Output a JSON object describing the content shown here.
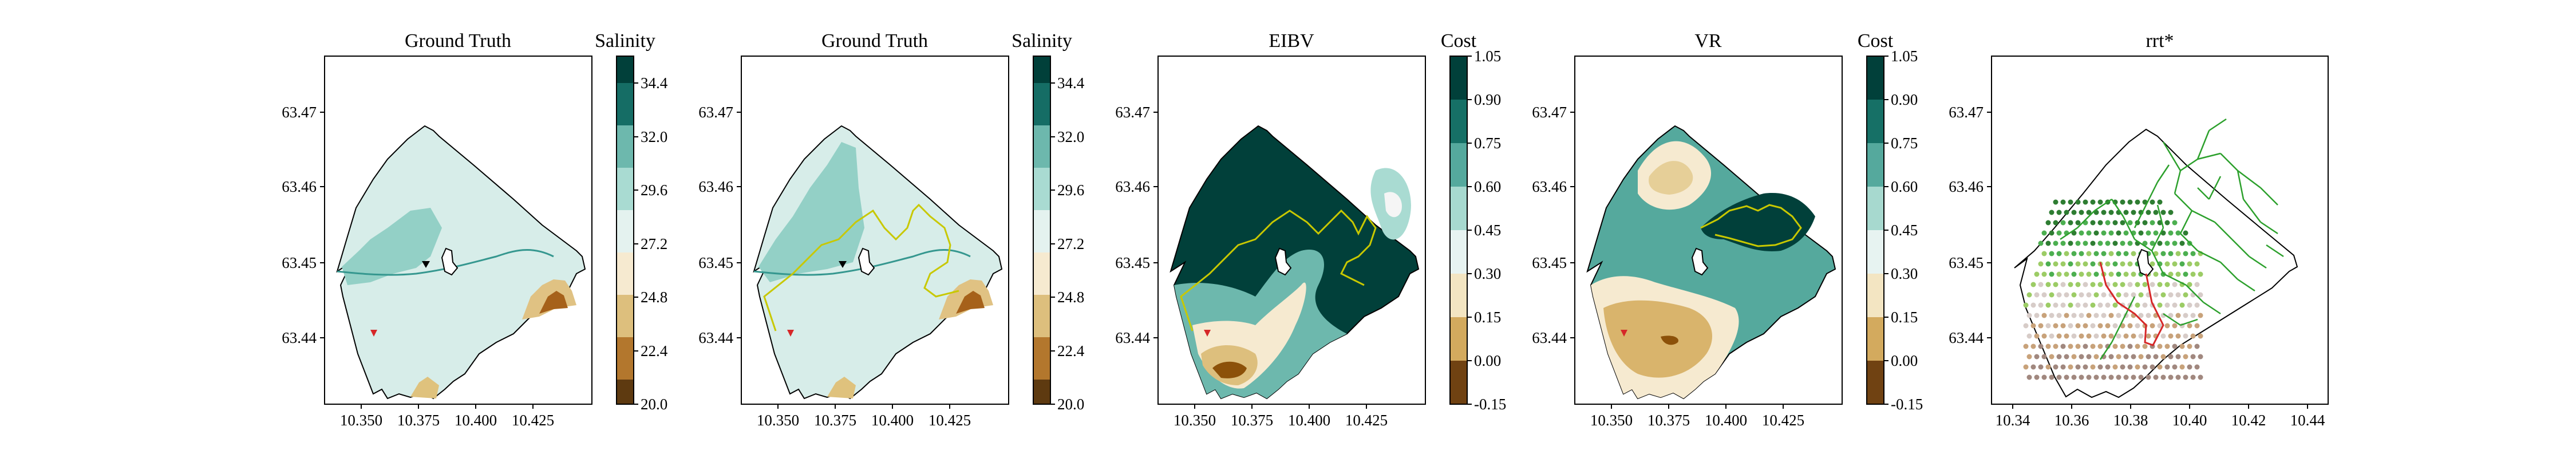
{
  "chart_data": [
    {
      "type": "contour",
      "title": "Ground Truth",
      "colorbar": {
        "label": "Salinity",
        "ticks": [
          "20.0",
          "22.4",
          "24.8",
          "27.2",
          "29.6",
          "32.0",
          "34.4"
        ],
        "range": [
          20.0,
          35.6
        ],
        "colormap": "BrBG"
      },
      "x_ticks": [
        "10.350",
        "10.375",
        "10.400",
        "10.425"
      ],
      "y_ticks": [
        "63.44",
        "63.45",
        "63.46",
        "63.47"
      ],
      "xlim": [
        10.33,
        10.45
      ],
      "ylim": [
        63.43,
        63.477
      ],
      "markers": [
        {
          "kind": "start",
          "symbol": "triangle-down",
          "color": "#d62728",
          "x": 10.356,
          "y": 63.441
        },
        {
          "kind": "current",
          "symbol": "triangle-down",
          "color": "#000000",
          "x": 10.372,
          "y": 63.45
        }
      ]
    },
    {
      "type": "contour",
      "title": "Ground Truth",
      "colorbar": {
        "label": "Salinity",
        "ticks": [
          "20.0",
          "22.4",
          "24.8",
          "27.2",
          "29.6",
          "32.0",
          "34.4"
        ],
        "range": [
          20.0,
          35.6
        ],
        "colormap": "BrBG"
      },
      "x_ticks": [
        "10.350",
        "10.375",
        "10.400",
        "10.425"
      ],
      "y_ticks": [
        "63.44",
        "63.45",
        "63.46",
        "63.47"
      ],
      "xlim": [
        10.33,
        10.45
      ],
      "ylim": [
        63.43,
        63.477
      ],
      "path_color": "#c8c800",
      "markers": [
        {
          "kind": "start",
          "symbol": "triangle-down",
          "color": "#d62728",
          "x": 10.356,
          "y": 63.441
        },
        {
          "kind": "current",
          "symbol": "triangle-down",
          "color": "#000000",
          "x": 10.372,
          "y": 63.45
        }
      ]
    },
    {
      "type": "contour",
      "title": "EIBV",
      "colorbar": {
        "label": "Cost",
        "ticks": [
          "-0.15",
          "0.00",
          "0.15",
          "0.30",
          "0.45",
          "0.60",
          "0.75",
          "0.90",
          "1.05"
        ],
        "range": [
          -0.15,
          1.05
        ],
        "colormap": "BrBG"
      },
      "x_ticks": [
        "10.350",
        "10.375",
        "10.400",
        "10.425"
      ],
      "y_ticks": [
        "63.44",
        "63.45",
        "63.46",
        "63.47"
      ],
      "xlim": [
        10.33,
        10.45
      ],
      "ylim": [
        63.43,
        63.477
      ],
      "path_color": "#c8c800"
    },
    {
      "type": "contour",
      "title": "VR",
      "colorbar": {
        "label": "Cost",
        "ticks": [
          "-0.15",
          "0.00",
          "0.15",
          "0.30",
          "0.45",
          "0.60",
          "0.75",
          "0.90",
          "1.05"
        ],
        "range": [
          -0.15,
          1.05
        ],
        "colormap": "BrBG"
      },
      "x_ticks": [
        "10.350",
        "10.375",
        "10.400",
        "10.425"
      ],
      "y_ticks": [
        "63.44",
        "63.45",
        "63.46",
        "63.47"
      ],
      "xlim": [
        10.33,
        10.45
      ],
      "ylim": [
        63.43,
        63.477
      ],
      "path_color": "#c8c800"
    },
    {
      "type": "scatter",
      "title": "rrt*",
      "x_ticks": [
        "10.34",
        "10.36",
        "10.38",
        "10.40",
        "10.42",
        "10.44"
      ],
      "y_ticks": [
        "63.44",
        "63.45",
        "63.46",
        "63.47"
      ],
      "xlim": [
        10.333,
        10.447
      ],
      "ylim": [
        63.43,
        63.477
      ],
      "tree_color": "#2ca02c",
      "best_path_color": "#d62728"
    }
  ]
}
